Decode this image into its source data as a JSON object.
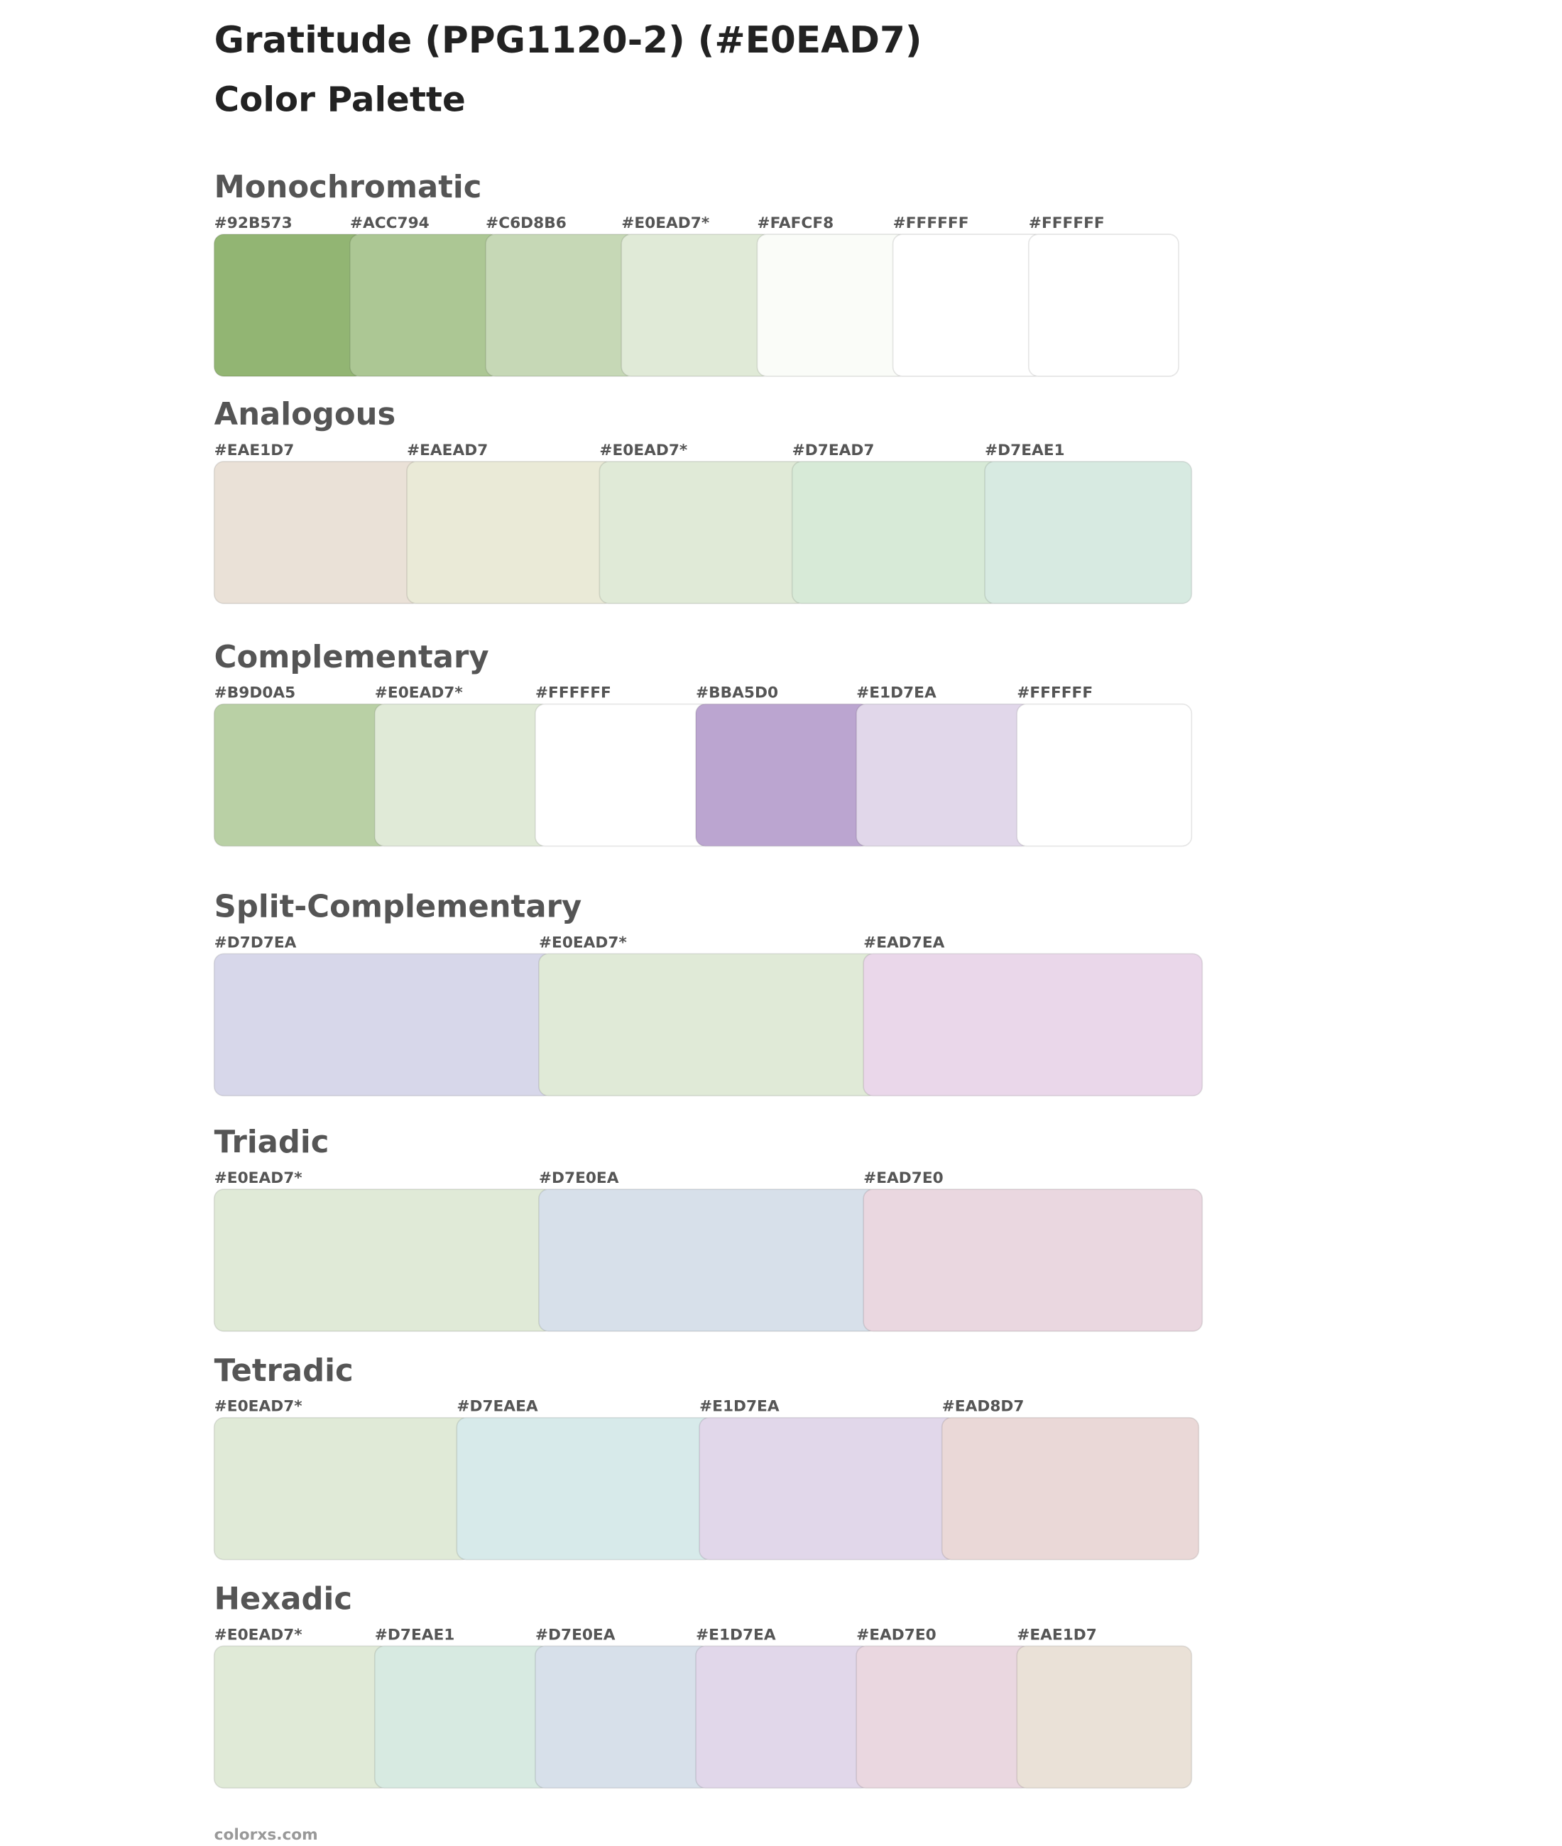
{
  "header": {
    "title": "Gratitude (PPG1120-2) (#E0EAD7)",
    "subtitle": "Color Palette"
  },
  "sections": [
    {
      "title": "Monochromatic",
      "swatches": [
        {
          "label": "#92B573",
          "color": "#92B573"
        },
        {
          "label": "#ACC794",
          "color": "#ACC794"
        },
        {
          "label": "#C6D8B6",
          "color": "#C6D8B6"
        },
        {
          "label": "#E0EAD7*",
          "color": "#E0EAD7"
        },
        {
          "label": "#FAFCF8",
          "color": "#FAFCF8"
        },
        {
          "label": "#FFFFFF",
          "color": "#FFFFFF"
        },
        {
          "label": "#FFFFFF",
          "color": "#FFFFFF"
        }
      ]
    },
    {
      "title": "Analogous",
      "swatches": [
        {
          "label": "#EAE1D7",
          "color": "#EAE1D7"
        },
        {
          "label": "#EAEAD7",
          "color": "#EAEAD7"
        },
        {
          "label": "#E0EAD7*",
          "color": "#E0EAD7"
        },
        {
          "label": "#D7EAD7",
          "color": "#D7EAD7"
        },
        {
          "label": "#D7EAE1",
          "color": "#D7EAE1"
        }
      ]
    },
    {
      "title": "Complementary",
      "swatches": [
        {
          "label": "#B9D0A5",
          "color": "#B9D0A5"
        },
        {
          "label": "#E0EAD7*",
          "color": "#E0EAD7"
        },
        {
          "label": "#FFFFFF",
          "color": "#FFFFFF"
        },
        {
          "label": "#BBA5D0",
          "color": "#BBA5D0"
        },
        {
          "label": "#E1D7EA",
          "color": "#E1D7EA"
        },
        {
          "label": "#FFFFFF",
          "color": "#FFFFFF"
        }
      ]
    },
    {
      "title": "Split-Complementary",
      "swatches": [
        {
          "label": "#D7D7EA",
          "color": "#D7D7EA"
        },
        {
          "label": "#E0EAD7*",
          "color": "#E0EAD7"
        },
        {
          "label": "#EAD7EA",
          "color": "#EAD7EA"
        }
      ]
    },
    {
      "title": "Triadic",
      "swatches": [
        {
          "label": "#E0EAD7*",
          "color": "#E0EAD7"
        },
        {
          "label": "#D7E0EA",
          "color": "#D7E0EA"
        },
        {
          "label": "#EAD7E0",
          "color": "#EAD7E0"
        }
      ]
    },
    {
      "title": "Tetradic",
      "swatches": [
        {
          "label": "#E0EAD7*",
          "color": "#E0EAD7"
        },
        {
          "label": "#D7EAEA",
          "color": "#D7EAEA"
        },
        {
          "label": "#E1D7EA",
          "color": "#E1D7EA"
        },
        {
          "label": "#EAD8D7",
          "color": "#EAD8D7"
        }
      ]
    },
    {
      "title": "Hexadic",
      "swatches": [
        {
          "label": "#E0EAD7*",
          "color": "#E0EAD7"
        },
        {
          "label": "#D7EAE1",
          "color": "#D7EAE1"
        },
        {
          "label": "#D7E0EA",
          "color": "#D7E0EA"
        },
        {
          "label": "#E1D7EA",
          "color": "#E1D7EA"
        },
        {
          "label": "#EAD7E0",
          "color": "#EAD7E0"
        },
        {
          "label": "#EAE1D7",
          "color": "#EAE1D7"
        }
      ]
    }
  ],
  "footer": "colorxs.com"
}
